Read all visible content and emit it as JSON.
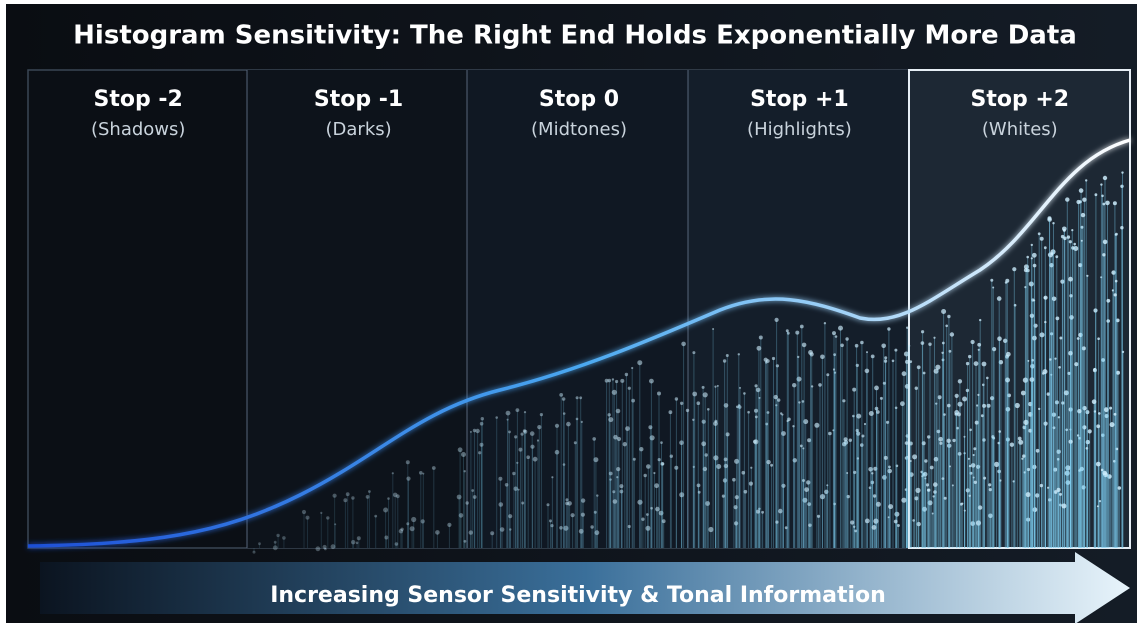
{
  "title": "Histogram Sensitivity: The Right End Holds Exponentially More Data",
  "panels": [
    {
      "label": "Stop -2",
      "sublabel": "(Shadows)"
    },
    {
      "label": "Stop -1",
      "sublabel": "(Darks)"
    },
    {
      "label": "Stop 0",
      "sublabel": "(Midtones)"
    },
    {
      "label": "Stop +1",
      "sublabel": "(Highlights)"
    },
    {
      "label": "Stop +2",
      "sublabel": "(Whites)"
    }
  ],
  "arrow_label": "Increasing Sensor Sensitivity & Tonal Information"
}
